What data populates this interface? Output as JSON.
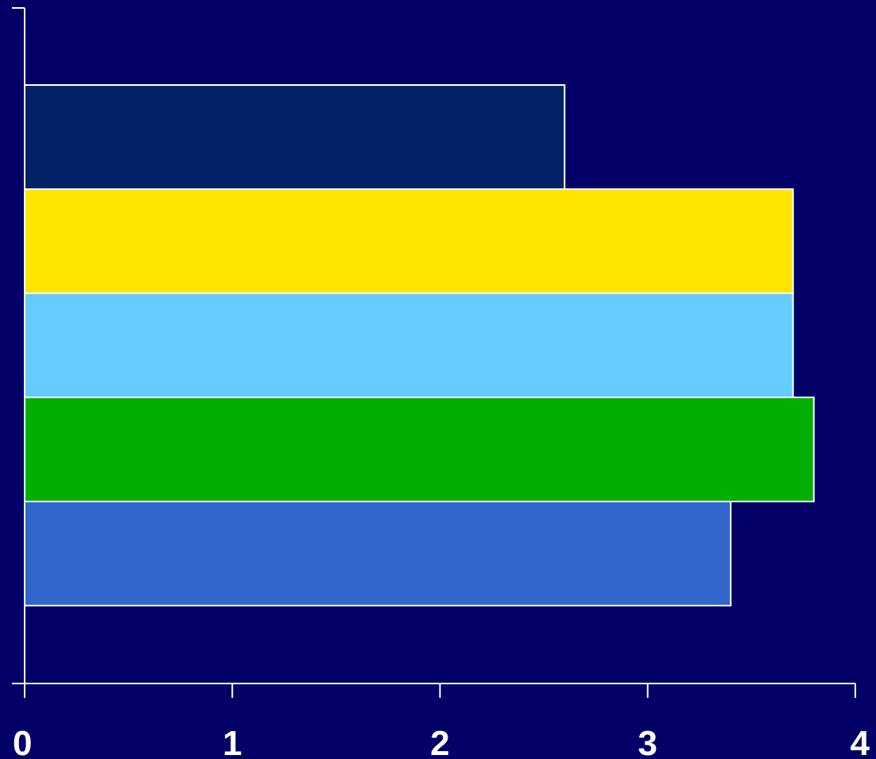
{
  "chart_data": {
    "type": "bar",
    "orientation": "horizontal",
    "stacked": false,
    "title": "",
    "xlabel": "",
    "ylabel": "",
    "xlim": [
      0,
      4
    ],
    "x_ticks": [
      "0",
      "1",
      "2",
      "3",
      "4"
    ],
    "grid": false,
    "legend": "none",
    "background_color": "#000066",
    "axis_color": "#ffffff",
    "bar_outline_color": "#ffffff",
    "bars": [
      {
        "value": 2.6,
        "color": "#002266"
      },
      {
        "value": 3.7,
        "color": "#ffe600"
      },
      {
        "value": 3.7,
        "color": "#66ccff"
      },
      {
        "value": 3.8,
        "color": "#00b000"
      },
      {
        "value": 3.4,
        "color": "#3366cc"
      }
    ]
  }
}
